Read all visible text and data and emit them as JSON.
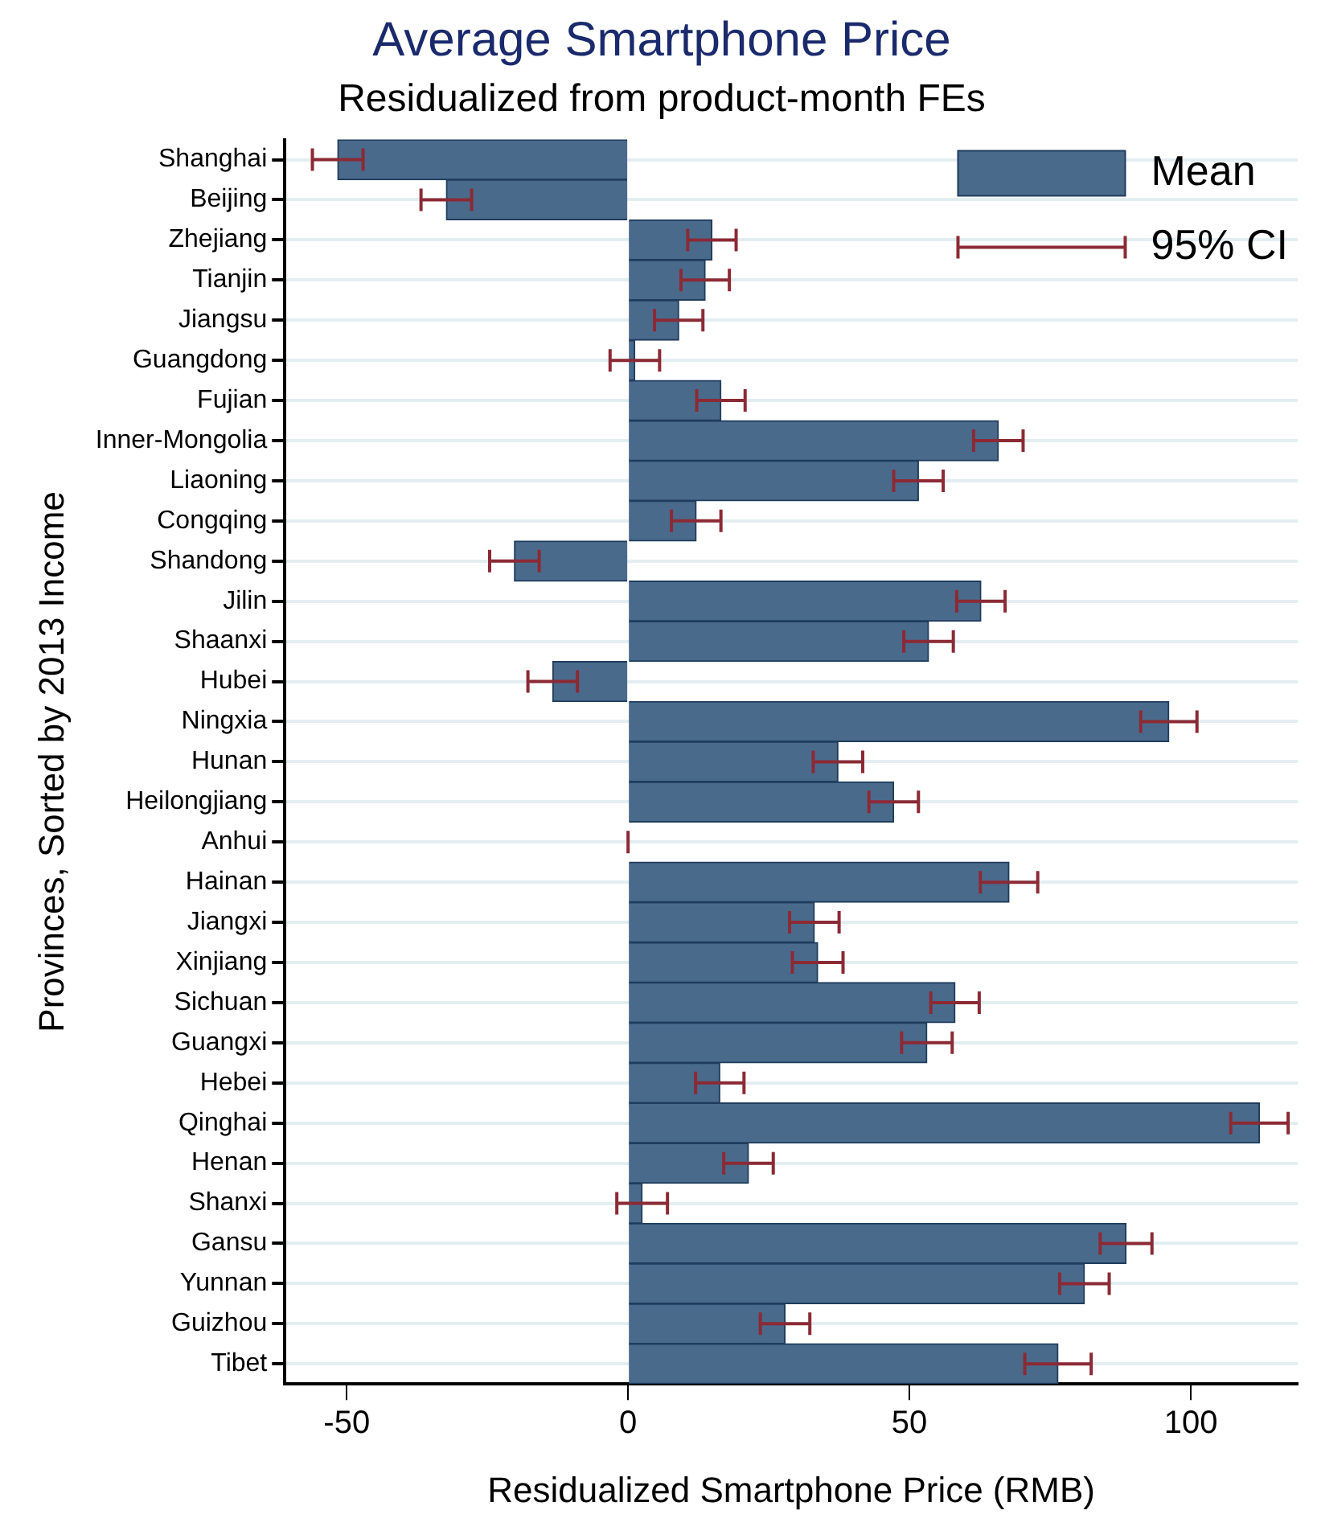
{
  "chart_data": {
    "type": "bar",
    "orientation": "horizontal",
    "title": "Average Smartphone Price",
    "subtitle": "Residualized from product-month FEs",
    "xlabel": "Residualized Smartphone Price (RMB)",
    "ylabel": "Provinces, Sorted by 2013 Income",
    "categories": [
      "Shanghai",
      "Beijing",
      "Zhejiang",
      "Tianjin",
      "Jiangsu",
      "Guangdong",
      "Fujian",
      "Inner-Mongolia",
      "Liaoning",
      "Congqing",
      "Shandong",
      "Jilin",
      "Shaanxi",
      "Hubei",
      "Ningxia",
      "Hunan",
      "Heilongjiang",
      "Anhui",
      "Hainan",
      "Jiangxi",
      "Xinjiang",
      "Sichuan",
      "Guangxi",
      "Hebei",
      "Qinghai",
      "Henan",
      "Shanxi",
      "Gansu",
      "Yunnan",
      "Guizhou",
      "Tibet"
    ],
    "series": [
      {
        "name": "Mean",
        "color": "#4a6a8c",
        "values": [
          -51.6,
          -32.3,
          14.9,
          13.7,
          9.0,
          1.2,
          16.5,
          65.8,
          51.6,
          12.1,
          -20.2,
          62.7,
          53.4,
          -13.4,
          96.1,
          37.3,
          47.2,
          0,
          67.7,
          33.1,
          33.7,
          58.1,
          53.1,
          16.3,
          112.2,
          21.4,
          2.5,
          88.5,
          81.1,
          27.9,
          76.4
        ],
        "errors": [
          4.5,
          4.5,
          4.3,
          4.3,
          4.3,
          4.4,
          4.3,
          4.4,
          4.4,
          4.4,
          4.4,
          4.3,
          4.4,
          4.4,
          5.0,
          4.4,
          4.4,
          0,
          5.1,
          4.4,
          4.5,
          4.3,
          4.5,
          4.3,
          5.1,
          4.4,
          4.5,
          4.6,
          4.4,
          4.4,
          5.9
        ]
      }
    ],
    "annotations": [
      "95% CI"
    ],
    "xlim": [
      -61,
      119
    ],
    "xticks": [
      -50,
      0,
      50,
      100
    ],
    "grid": "y",
    "legend": "top right"
  }
}
